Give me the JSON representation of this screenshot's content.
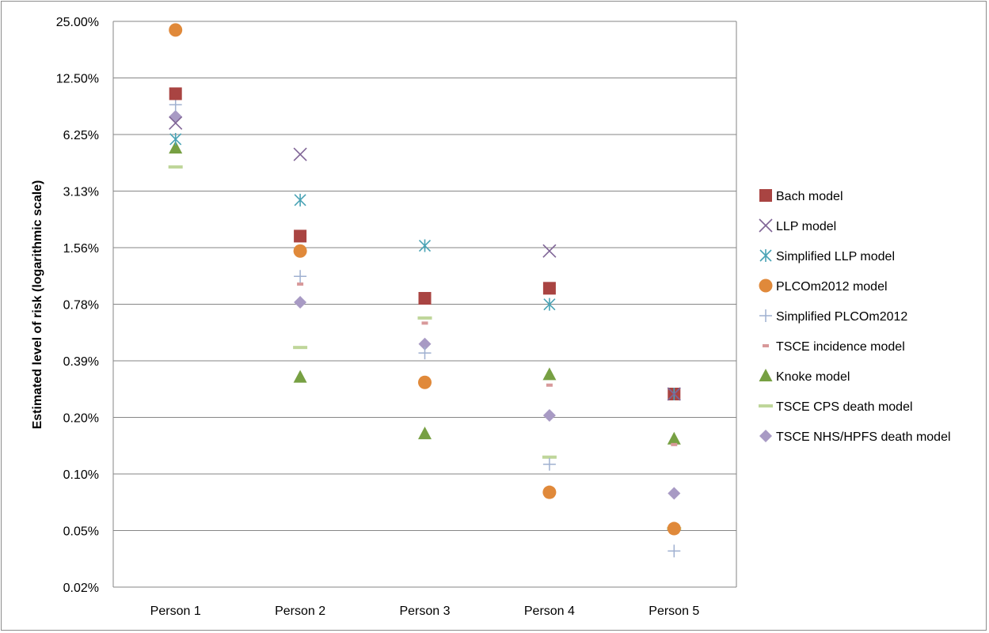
{
  "chart_data": {
    "type": "scatter",
    "ylabel": "Estimated level of risk (logarithmic scale)",
    "y_scale": "log2",
    "ylim": [
      0.02,
      25
    ],
    "y_ticks": [
      {
        "value": 25,
        "label": "25.00%"
      },
      {
        "value": 12.5,
        "label": "12.50%"
      },
      {
        "value": 6.25,
        "label": "6.25%"
      },
      {
        "value": 3.125,
        "label": "3.13%"
      },
      {
        "value": 1.5625,
        "label": "1.56%"
      },
      {
        "value": 0.78125,
        "label": "0.78%"
      },
      {
        "value": 0.390625,
        "label": "0.39%"
      },
      {
        "value": 0.1953125,
        "label": "0.20%"
      },
      {
        "value": 0.09765625,
        "label": "0.10%"
      },
      {
        "value": 0.048828125,
        "label": "0.05%"
      },
      {
        "value": 0.0244140625,
        "label": "0.02%"
      }
    ],
    "categories": [
      "Person 1",
      "Person 2",
      "Person 3",
      "Person 4",
      "Person 5"
    ],
    "grid": true,
    "legend_position": "right",
    "series": [
      {
        "name": "Bach model",
        "marker": "square",
        "color": "#a94442",
        "values": [
          10.3,
          1.8,
          0.84,
          0.95,
          0.26
        ]
      },
      {
        "name": "LLP model",
        "marker": "x",
        "color": "#7f6496",
        "values": [
          7.2,
          4.9,
          null,
          1.5,
          0.26
        ]
      },
      {
        "name": "Simplified LLP model",
        "marker": "asterisk",
        "color": "#4aa3b5",
        "values": [
          5.9,
          2.8,
          1.6,
          0.78,
          0.26
        ]
      },
      {
        "name": "PLCOm2012 model",
        "marker": "circle",
        "color": "#e0893a",
        "values": [
          22.5,
          1.5,
          null,
          0.078,
          0.05
        ]
      },
      {
        "name": "Simplified PLCOm2012",
        "marker": "plus",
        "color": "#9fb0d0",
        "values": [
          9.0,
          1.1,
          0.43,
          0.11,
          0.038
        ]
      },
      {
        "name": "TSCE incidence model",
        "marker": "dash",
        "color": "#d8999a",
        "values": [
          9.8,
          1.0,
          0.62,
          0.29,
          0.14
        ]
      },
      {
        "name": "Knoke model",
        "marker": "triangle",
        "color": "#77a043",
        "values": [
          5.3,
          0.32,
          0.16,
          0.33,
          0.15
        ]
      },
      {
        "name": "TSCE CPS death model",
        "marker": "bar",
        "color": "#bfd69a",
        "values": [
          4.2,
          0.46,
          0.66,
          0.12,
          0.05
        ]
      },
      {
        "name": "TSCE NHS/HPFS death model",
        "marker": "diamond",
        "color": "#a89ac4",
        "values": [
          7.8,
          0.8,
          0.48,
          0.2,
          0.077
        ]
      }
    ],
    "extra_points": [
      {
        "series": "PLCOm2012 model",
        "category": "Person 3",
        "value": 0.3
      }
    ]
  }
}
